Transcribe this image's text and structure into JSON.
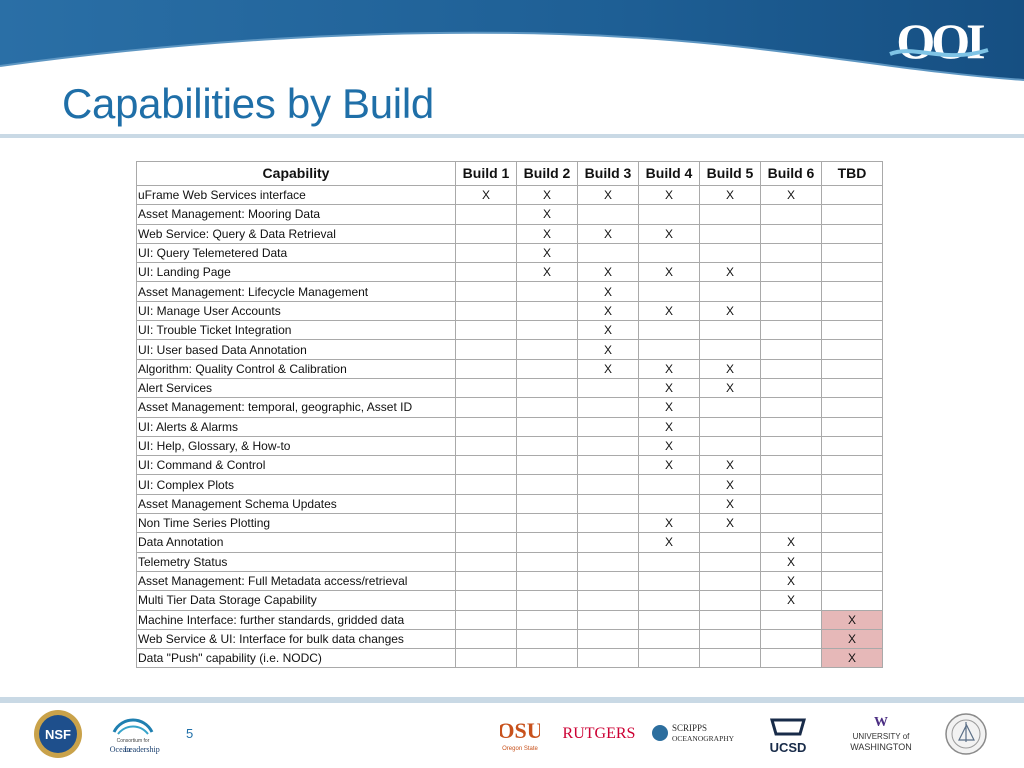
{
  "slide": {
    "title": "Capabilities by Build",
    "page_number": "5"
  },
  "table": {
    "headers": [
      "Capability",
      "Build 1",
      "Build 2",
      "Build 3",
      "Build 4",
      "Build 5",
      "Build 6",
      "TBD"
    ],
    "rows": [
      {
        "capability": "uFrame Web Services interface",
        "marks": [
          "X",
          "X",
          "X",
          "X",
          "X",
          "X",
          ""
        ]
      },
      {
        "capability": "Asset Management: Mooring Data",
        "marks": [
          "",
          "X",
          "",
          "",
          "",
          "",
          ""
        ]
      },
      {
        "capability": "Web Service: Query & Data Retrieval",
        "marks": [
          "",
          "X",
          "X",
          "X",
          "",
          "",
          ""
        ]
      },
      {
        "capability": "UI: Query Telemetered Data",
        "marks": [
          "",
          "X",
          "",
          "",
          "",
          "",
          ""
        ]
      },
      {
        "capability": "UI: Landing Page",
        "marks": [
          "",
          "X",
          "X",
          "X",
          "X",
          "",
          ""
        ]
      },
      {
        "capability": "Asset Management: Lifecycle Management",
        "marks": [
          "",
          "",
          "X",
          "",
          "",
          "",
          ""
        ]
      },
      {
        "capability": "UI: Manage User Accounts",
        "marks": [
          "",
          "",
          "X",
          "X",
          "X",
          "",
          ""
        ]
      },
      {
        "capability": "UI: Trouble Ticket Integration",
        "marks": [
          "",
          "",
          "X",
          "",
          "",
          "",
          ""
        ]
      },
      {
        "capability": "UI: User based Data Annotation",
        "marks": [
          "",
          "",
          "X",
          "",
          "",
          "",
          ""
        ]
      },
      {
        "capability": "Algorithm: Quality Control & Calibration",
        "marks": [
          "",
          "",
          "X",
          "X",
          "X",
          "",
          ""
        ]
      },
      {
        "capability": "Alert Services",
        "marks": [
          "",
          "",
          "",
          "X",
          "X",
          "",
          ""
        ]
      },
      {
        "capability": "Asset Management: temporal, geographic, Asset ID",
        "marks": [
          "",
          "",
          "",
          "X",
          "",
          "",
          ""
        ]
      },
      {
        "capability": "UI: Alerts & Alarms",
        "marks": [
          "",
          "",
          "",
          "X",
          "",
          "",
          ""
        ]
      },
      {
        "capability": "UI: Help, Glossary, & How-to",
        "marks": [
          "",
          "",
          "",
          "X",
          "",
          "",
          ""
        ]
      },
      {
        "capability": "UI: Command & Control",
        "marks": [
          "",
          "",
          "",
          "X",
          "X",
          "",
          ""
        ]
      },
      {
        "capability": "UI: Complex Plots",
        "marks": [
          "",
          "",
          "",
          "",
          "X",
          "",
          ""
        ]
      },
      {
        "capability": "Asset Management Schema Updates",
        "marks": [
          "",
          "",
          "",
          "",
          "X",
          "",
          ""
        ]
      },
      {
        "capability": "Non Time Series Plotting",
        "marks": [
          "",
          "",
          "",
          "X",
          "X",
          "",
          ""
        ]
      },
      {
        "capability": "Data Annotation",
        "marks": [
          "",
          "",
          "",
          "X",
          "",
          "X",
          ""
        ]
      },
      {
        "capability": "Telemetry Status",
        "marks": [
          "",
          "",
          "",
          "",
          "",
          "X",
          ""
        ]
      },
      {
        "capability": "Asset Management: Full Metadata access/retrieval",
        "marks": [
          "",
          "",
          "",
          "",
          "",
          "X",
          ""
        ]
      },
      {
        "capability": "Multi Tier Data Storage Capability",
        "marks": [
          "",
          "",
          "",
          "",
          "",
          "X",
          ""
        ]
      },
      {
        "capability": "Machine Interface: further standards, gridded data",
        "marks": [
          "",
          "",
          "",
          "",
          "",
          "",
          "X"
        ]
      },
      {
        "capability": "Web Service & UI: Interface for bulk data changes",
        "marks": [
          "",
          "",
          "",
          "",
          "",
          "",
          "X"
        ]
      },
      {
        "capability": "Data \"Push\" capability (i.e. NODC)",
        "marks": [
          "",
          "",
          "",
          "",
          "",
          "",
          "X"
        ]
      }
    ]
  },
  "logos": {
    "ooi": "OOI",
    "nsf": "NSF",
    "ocean_leadership": [
      "Consortium for",
      "Ocean",
      "Leadership"
    ],
    "osu": [
      "OSU",
      "Oregon State"
    ],
    "rutgers": "RUTGERS",
    "scripps": [
      "SCRIPPS",
      "OCEANOGRAPHY"
    ],
    "ucsd": "UCSD",
    "uw": [
      "W",
      "UNIVERSITY of",
      "WASHINGTON"
    ]
  },
  "colors": {
    "title": "#1f6fa8",
    "tbd_highlight": "#e6b8b8",
    "header_wave": "#1d5e93"
  }
}
